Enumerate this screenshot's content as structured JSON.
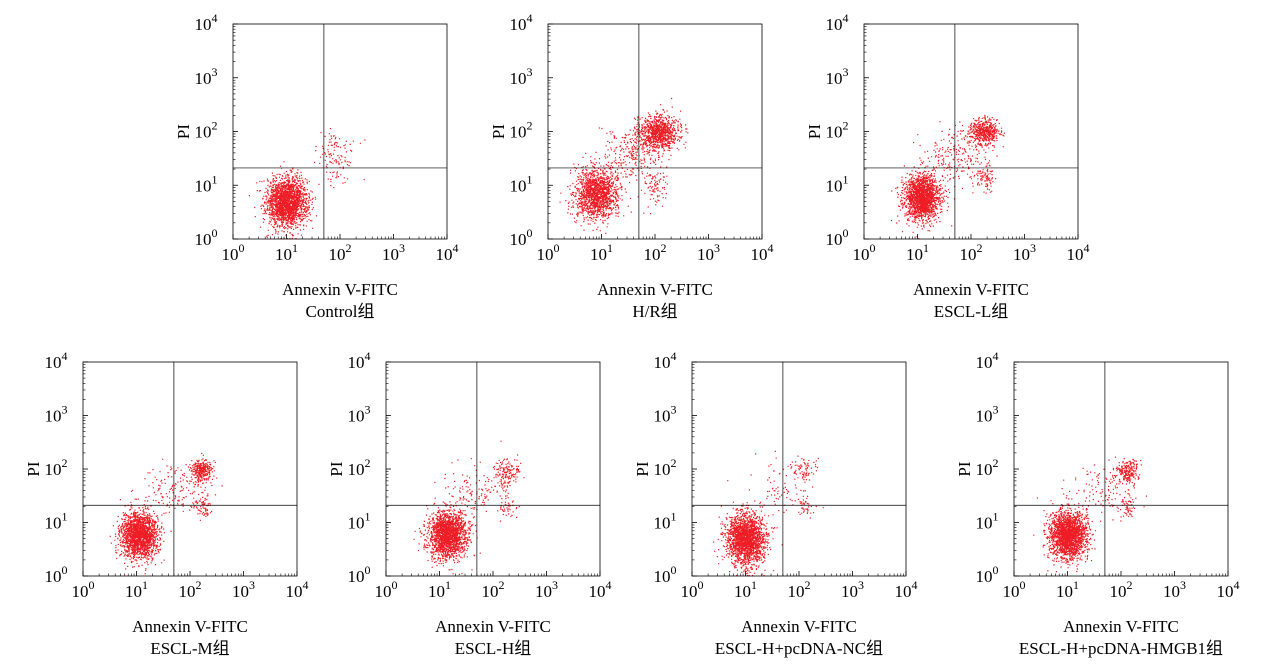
{
  "chart_data": [
    {
      "type": "scatter",
      "caption": "Control组",
      "xlabel": "Annexin V-FITC",
      "ylabel": "PI",
      "scale": "log",
      "xlim": [
        1,
        10000
      ],
      "ylim": [
        1,
        10000
      ],
      "x_ticks": [
        1,
        10,
        100,
        1000,
        10000
      ],
      "y_ticks": [
        1,
        10,
        100,
        1000,
        10000
      ],
      "gate": {
        "x": 50,
        "y": 21
      },
      "point_color": "#ee1c25",
      "clusters": [
        {
          "x": 10,
          "y": 5,
          "sx": 0.19,
          "sy": 0.23,
          "n": 2000
        },
        {
          "x": 80,
          "y": 35,
          "sx": 0.18,
          "sy": 0.22,
          "n": 120
        }
      ]
    },
    {
      "type": "scatter",
      "caption": "H/R组",
      "xlabel": "Annexin V-FITC",
      "ylabel": "PI",
      "scale": "log",
      "xlim": [
        1,
        10000
      ],
      "ylim": [
        1,
        10000
      ],
      "x_ticks": [
        1,
        10,
        100,
        1000,
        10000
      ],
      "y_ticks": [
        1,
        10,
        100,
        1000,
        10000
      ],
      "gate": {
        "x": 50,
        "y": 21
      },
      "point_color": "#ee1c25",
      "clusters": [
        {
          "x": 8,
          "y": 7,
          "sx": 0.2,
          "sy": 0.24,
          "n": 1400
        },
        {
          "x": 110,
          "y": 100,
          "sx": 0.2,
          "sy": 0.15,
          "n": 900
        },
        {
          "x": 100,
          "y": 10,
          "sx": 0.1,
          "sy": 0.15,
          "n": 90
        },
        {
          "x": 35,
          "y": 40,
          "sx": 0.3,
          "sy": 0.25,
          "n": 250
        }
      ]
    },
    {
      "type": "scatter",
      "caption": "ESCL-L组",
      "xlabel": "Annexin V-FITC",
      "ylabel": "PI",
      "scale": "log",
      "xlim": [
        1,
        10000
      ],
      "ylim": [
        1,
        10000
      ],
      "x_ticks": [
        1,
        10,
        100,
        1000,
        10000
      ],
      "y_ticks": [
        1,
        10,
        100,
        1000,
        10000
      ],
      "gate": {
        "x": 50,
        "y": 21
      },
      "point_color": "#ee1c25",
      "clusters": [
        {
          "x": 12,
          "y": 6,
          "sx": 0.17,
          "sy": 0.22,
          "n": 1700
        },
        {
          "x": 170,
          "y": 100,
          "sx": 0.14,
          "sy": 0.12,
          "n": 500
        },
        {
          "x": 180,
          "y": 14,
          "sx": 0.08,
          "sy": 0.12,
          "n": 90
        },
        {
          "x": 50,
          "y": 35,
          "sx": 0.3,
          "sy": 0.25,
          "n": 200
        }
      ]
    },
    {
      "type": "scatter",
      "caption": "ESCL-M组",
      "xlabel": "Annexin V-FITC",
      "ylabel": "PI",
      "scale": "log",
      "xlim": [
        1,
        10000
      ],
      "ylim": [
        1,
        10000
      ],
      "x_ticks": [
        1,
        10,
        100,
        1000,
        10000
      ],
      "y_ticks": [
        1,
        10,
        100,
        1000,
        10000
      ],
      "gate": {
        "x": 50,
        "y": 21
      },
      "point_color": "#ee1c25",
      "clusters": [
        {
          "x": 11,
          "y": 6,
          "sx": 0.17,
          "sy": 0.22,
          "n": 1800
        },
        {
          "x": 160,
          "y": 95,
          "sx": 0.1,
          "sy": 0.1,
          "n": 300
        },
        {
          "x": 170,
          "y": 20,
          "sx": 0.08,
          "sy": 0.12,
          "n": 70
        },
        {
          "x": 50,
          "y": 40,
          "sx": 0.3,
          "sy": 0.25,
          "n": 150
        }
      ]
    },
    {
      "type": "scatter",
      "caption": "ESCL-H组",
      "xlabel": "Annexin V-FITC",
      "ylabel": "PI",
      "scale": "log",
      "xlim": [
        1,
        10000
      ],
      "ylim": [
        1,
        10000
      ],
      "x_ticks": [
        1,
        10,
        100,
        1000,
        10000
      ],
      "y_ticks": [
        1,
        10,
        100,
        1000,
        10000
      ],
      "gate": {
        "x": 50,
        "y": 21
      },
      "point_color": "#ee1c25",
      "clusters": [
        {
          "x": 14,
          "y": 6,
          "sx": 0.18,
          "sy": 0.22,
          "n": 1800
        },
        {
          "x": 180,
          "y": 90,
          "sx": 0.12,
          "sy": 0.12,
          "n": 150
        },
        {
          "x": 190,
          "y": 20,
          "sx": 0.08,
          "sy": 0.12,
          "n": 40
        },
        {
          "x": 50,
          "y": 40,
          "sx": 0.3,
          "sy": 0.25,
          "n": 130
        }
      ]
    },
    {
      "type": "scatter",
      "caption": "ESCL-H+pcDNA-NC组",
      "xlabel": "Annexin V-FITC",
      "ylabel": "PI",
      "scale": "log",
      "xlim": [
        1,
        10000
      ],
      "ylim": [
        1,
        10000
      ],
      "x_ticks": [
        1,
        10,
        100,
        1000,
        10000
      ],
      "y_ticks": [
        1,
        10,
        100,
        1000,
        10000
      ],
      "gate": {
        "x": 50,
        "y": 21
      },
      "point_color": "#ee1c25",
      "clusters": [
        {
          "x": 10,
          "y": 5,
          "sx": 0.18,
          "sy": 0.24,
          "n": 1900
        },
        {
          "x": 130,
          "y": 100,
          "sx": 0.1,
          "sy": 0.1,
          "n": 60
        },
        {
          "x": 130,
          "y": 20,
          "sx": 0.08,
          "sy": 0.12,
          "n": 40
        },
        {
          "x": 50,
          "y": 40,
          "sx": 0.3,
          "sy": 0.3,
          "n": 90
        }
      ]
    },
    {
      "type": "scatter",
      "caption": "ESCL-H+pcDNA-HMGB1组",
      "xlabel": "Annexin V-FITC",
      "ylabel": "PI",
      "scale": "log",
      "xlim": [
        1,
        10000
      ],
      "ylim": [
        1,
        10000
      ],
      "x_ticks": [
        1,
        10,
        100,
        1000,
        10000
      ],
      "y_ticks": [
        1,
        10,
        100,
        1000,
        10000
      ],
      "gate": {
        "x": 50,
        "y": 21
      },
      "point_color": "#ee1c25",
      "clusters": [
        {
          "x": 10,
          "y": 6,
          "sx": 0.18,
          "sy": 0.22,
          "n": 1900
        },
        {
          "x": 130,
          "y": 90,
          "sx": 0.1,
          "sy": 0.1,
          "n": 220
        },
        {
          "x": 130,
          "y": 20,
          "sx": 0.08,
          "sy": 0.12,
          "n": 50
        },
        {
          "x": 45,
          "y": 40,
          "sx": 0.3,
          "sy": 0.25,
          "n": 120
        }
      ]
    }
  ]
}
